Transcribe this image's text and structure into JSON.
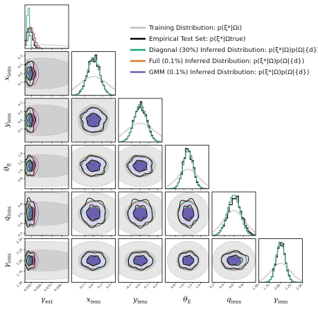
{
  "chart_data": {
    "type": "corner",
    "title": "",
    "parameters": [
      {
        "label": "γext",
        "label_main": "γ",
        "label_sub": "ext",
        "range": [
          0.035,
          0.1
        ],
        "ticks": [
          "0.045",
          "0.060",
          "0.075",
          "0.090"
        ],
        "tick_values": [
          0.045,
          0.06,
          0.075,
          0.09
        ]
      },
      {
        "label": "xlens",
        "label_main": "x",
        "label_sub": "lens",
        "range": [
          -0.25,
          0.25
        ],
        "ticks": [
          "-0.1",
          "0.0",
          "0.1",
          "0.2"
        ],
        "tick_values": [
          -0.1,
          0.0,
          0.1,
          0.2
        ]
      },
      {
        "label": "ylens",
        "label_main": "y",
        "label_sub": "lens",
        "range": [
          -0.25,
          0.25
        ],
        "ticks": [
          "-0.1",
          "0.0",
          "0.1",
          "0.2"
        ],
        "tick_values": [
          -0.1,
          0.0,
          0.1,
          0.2
        ]
      },
      {
        "label": "θE",
        "label_main": "θ",
        "label_sub": "E",
        "range": [
          0.55,
          1.6
        ],
        "ticks": [
          "0.8",
          "1.0",
          "1.2",
          "1.4"
        ],
        "tick_values": [
          0.8,
          1.0,
          1.2,
          1.4
        ]
      },
      {
        "label": "qlens",
        "label_main": "q",
        "label_sub": "lens",
        "range": [
          0.15,
          1.05
        ],
        "ticks": [
          "0.2",
          "0.4",
          "0.6",
          "0.8"
        ],
        "tick_values": [
          0.2,
          0.4,
          0.6,
          0.8
        ]
      },
      {
        "label": "γlens",
        "label_main": "γ",
        "label_sub": "lens",
        "range": [
          1.5,
          2.5
        ],
        "ticks": [
          "1.50",
          "1.75",
          "2.00",
          "2.25",
          "2.50"
        ],
        "tick_values": [
          1.5,
          1.75,
          2.0,
          2.25,
          2.5
        ]
      }
    ],
    "legend": {
      "placement": "top-right",
      "entries": [
        {
          "label": "Training Distribution: p(ξ*|Ωi)",
          "color": "#bcbcbc"
        },
        {
          "label": "Empirical Test Set: p(ξ*|Ωtrue)",
          "color": "#000000"
        },
        {
          "label": "Diagonal (30%) Inferred Distribution: p(ξ*|Ω)p(Ω|{d})",
          "color": "#1fa37d"
        },
        {
          "label": "Full (0.1%) Inferred Distribution: p(ξ*|Ω)p(Ω|{d})",
          "color": "#e07628"
        },
        {
          "label": "GMM (0.1%) Inferred Distribution: p(ξ*|Ω)p(Ω|{d})",
          "color": "#6b5fb0"
        }
      ]
    },
    "series": [
      {
        "name": "Training Distribution",
        "color": "#bcbcbc",
        "centers": [
          0.06,
          0.0,
          0.0,
          1.1,
          0.6,
          2.0
        ],
        "sigmas": [
          0.05,
          0.16,
          0.16,
          0.25,
          0.22,
          0.22
        ]
      },
      {
        "name": "Empirical Test Set",
        "color": "#000000",
        "centers": [
          0.042,
          0.0,
          0.0,
          1.1,
          0.62,
          2.0
        ],
        "sigmas": [
          0.004,
          0.07,
          0.07,
          0.12,
          0.14,
          0.1
        ]
      },
      {
        "name": "Diagonal (30%)",
        "color": "#1fa37d",
        "centers": [
          0.04,
          0.0,
          0.0,
          1.1,
          0.6,
          2.0
        ],
        "sigmas": [
          0.002,
          0.07,
          0.07,
          0.12,
          0.13,
          0.1
        ]
      },
      {
        "name": "Full (0.1%)",
        "color": "#e07628",
        "centers": [
          0.044,
          0.0,
          0.0,
          1.1,
          0.6,
          2.0
        ],
        "sigmas": [
          0.004,
          0.07,
          0.07,
          0.12,
          0.13,
          0.1
        ]
      },
      {
        "name": "GMM (0.1%)",
        "color": "#6b5fb0",
        "centers": [
          0.045,
          0.0,
          0.0,
          1.1,
          0.6,
          2.0
        ],
        "sigmas": [
          0.005,
          0.07,
          0.07,
          0.12,
          0.13,
          0.1
        ]
      }
    ],
    "grid": false
  }
}
